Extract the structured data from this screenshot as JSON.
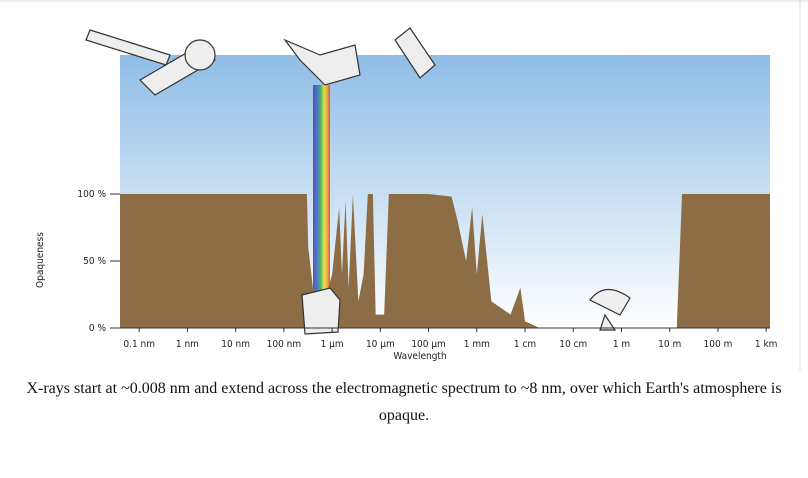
{
  "chart_data": {
    "type": "area",
    "ylabel": "Opaqueness",
    "xlabel": "Wavelength",
    "caption": "X-rays start at ~0.008 nm and extend across the electromagnetic spectrum to ~8 nm, over which Earth's atmosphere is opaque.",
    "log_x": true,
    "color": "#8c6d45",
    "x": [
      4e-11,
      3e-07,
      3.2e-07,
      4e-07,
      7e-07,
      1e-06,
      1.4e-06,
      1.6e-06,
      1.9e-06,
      2.2e-06,
      2.7e-06,
      3.5e-06,
      4.5e-06,
      5.5e-06,
      7e-06,
      8e-06,
      1.2e-05,
      1.5e-05,
      0.0001,
      0.0003,
      0.0004,
      0.0006,
      0.0008,
      0.001,
      0.0013,
      0.002,
      0.005,
      0.008,
      0.01,
      0.02,
      10,
      14,
      18,
      1200
    ],
    "values": [
      100,
      100,
      60,
      30,
      20,
      40,
      90,
      40,
      95,
      30,
      100,
      20,
      40,
      100,
      100,
      10,
      10,
      100,
      100,
      98,
      80,
      50,
      90,
      40,
      85,
      20,
      10,
      30,
      5,
      0,
      0,
      0,
      100,
      100
    ],
    "xlim": [
      4e-11,
      1200
    ],
    "xticks": [
      {
        "value": 1e-10,
        "label": "0.1 nm"
      },
      {
        "value": 1e-09,
        "label": "1 nm"
      },
      {
        "value": 1e-08,
        "label": "10 nm"
      },
      {
        "value": 1e-07,
        "label": "100 nm"
      },
      {
        "value": 1e-06,
        "label": "1 µm"
      },
      {
        "value": 1e-05,
        "label": "10 µm"
      },
      {
        "value": 0.0001,
        "label": "100 µm"
      },
      {
        "value": 0.001,
        "label": "1 mm"
      },
      {
        "value": 0.01,
        "label": "1 cm"
      },
      {
        "value": 0.1,
        "label": "10 cm"
      },
      {
        "value": 1,
        "label": "1 m"
      },
      {
        "value": 10,
        "label": "10 m"
      },
      {
        "value": 100,
        "label": "100 m"
      },
      {
        "value": 1000,
        "label": "1 km"
      }
    ],
    "ylim": [
      0,
      100
    ],
    "yticks": [
      {
        "value": 0,
        "label": "0 %"
      },
      {
        "value": 50,
        "label": "50 %"
      },
      {
        "value": 100,
        "label": "100 %"
      }
    ]
  }
}
